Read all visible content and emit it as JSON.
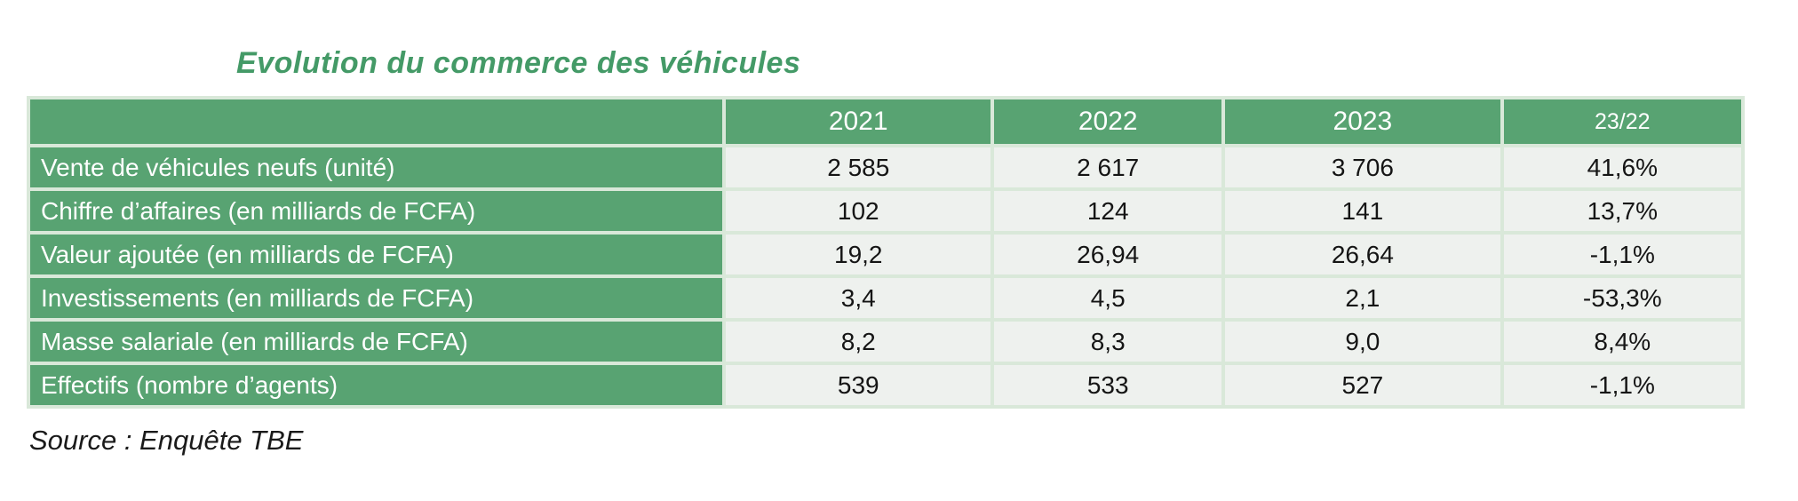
{
  "title": "Evolution du commerce des véhicules",
  "source": "Source : Enquête TBE",
  "colors": {
    "accent_green": "#58a372",
    "title_green": "#449a67",
    "separator_light_green": "#d9e8d9",
    "data_cell_bg": "#eef1ee",
    "header_text": "#ffffff",
    "data_text": "#151515"
  },
  "table": {
    "columns": [
      "",
      "2021",
      "2022",
      "2023",
      "23/22"
    ],
    "rows": [
      {
        "label": "Vente de véhicules neufs (unité)",
        "values": [
          "2 585",
          "2 617",
          "3 706",
          "41,6%"
        ]
      },
      {
        "label": "Chiffre d’affaires (en milliards de FCFA)",
        "values": [
          "102",
          "124",
          "141",
          "13,7%"
        ]
      },
      {
        "label": "Valeur ajoutée (en milliards de FCFA)",
        "values": [
          "19,2",
          "26,94",
          "26,64",
          "-1,1%"
        ]
      },
      {
        "label": "Investissements (en milliards de FCFA)",
        "values": [
          "3,4",
          "4,5",
          "2,1",
          "-53,3%"
        ]
      },
      {
        "label": "Masse salariale (en milliards de FCFA)",
        "values": [
          "8,2",
          "8,3",
          "9,0",
          "8,4%"
        ]
      },
      {
        "label": "Effectifs (nombre d’agents)",
        "values": [
          "539",
          "533",
          "527",
          "-1,1%"
        ]
      }
    ]
  },
  "chart_data": {
    "type": "table",
    "title": "Evolution du commerce des véhicules",
    "columns": [
      "2021",
      "2022",
      "2023",
      "23/22"
    ],
    "rows": [
      {
        "indicator": "Vente de véhicules neufs (unité)",
        "2021": 2585,
        "2022": 2617,
        "2023": 3706,
        "var_23_22_pct": 41.6
      },
      {
        "indicator": "Chiffre d’affaires (en milliards de FCFA)",
        "2021": 102,
        "2022": 124,
        "2023": 141,
        "var_23_22_pct": 13.7
      },
      {
        "indicator": "Valeur ajoutée (en milliards de FCFA)",
        "2021": 19.2,
        "2022": 26.94,
        "2023": 26.64,
        "var_23_22_pct": -1.1
      },
      {
        "indicator": "Investissements (en milliards de FCFA)",
        "2021": 3.4,
        "2022": 4.5,
        "2023": 2.1,
        "var_23_22_pct": -53.3
      },
      {
        "indicator": "Masse salariale (en milliards de FCFA)",
        "2021": 8.2,
        "2022": 8.3,
        "2023": 9.0,
        "var_23_22_pct": 8.4
      },
      {
        "indicator": "Effectifs (nombre d’agents)",
        "2021": 539,
        "2022": 533,
        "2023": 527,
        "var_23_22_pct": -1.1
      }
    ],
    "source": "Source : Enquête TBE",
    "number_format": "fr-FR (comma decimals, space thousands)"
  }
}
